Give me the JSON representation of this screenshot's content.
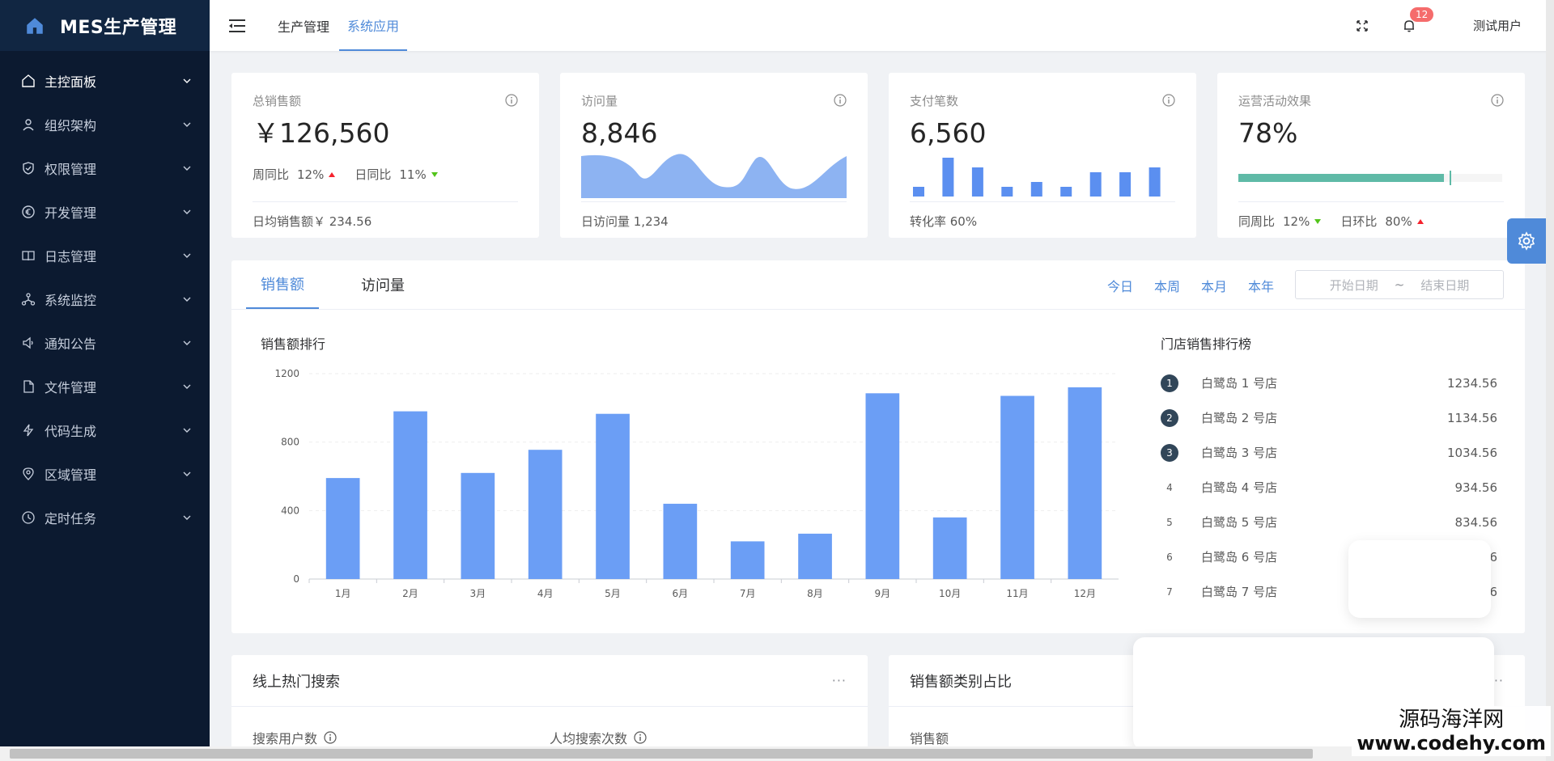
{
  "app": {
    "title": "MES生产管理"
  },
  "sidebar": {
    "items": [
      {
        "label": "主控面板",
        "icon": "home-outline-icon"
      },
      {
        "label": "组织架构",
        "icon": "org-icon"
      },
      {
        "label": "权限管理",
        "icon": "shield-icon"
      },
      {
        "label": "开发管理",
        "icon": "euro-circle-icon"
      },
      {
        "label": "日志管理",
        "icon": "book-icon"
      },
      {
        "label": "系统监控",
        "icon": "monitor-node-icon"
      },
      {
        "label": "通知公告",
        "icon": "speaker-icon"
      },
      {
        "label": "文件管理",
        "icon": "file-icon"
      },
      {
        "label": "代码生成",
        "icon": "lightning-icon"
      },
      {
        "label": "区域管理",
        "icon": "location-icon"
      },
      {
        "label": "定时任务",
        "icon": "clock-icon"
      }
    ]
  },
  "header": {
    "tabs": [
      "生产管理",
      "系统应用"
    ],
    "active_tab": 1,
    "notification_count": "12",
    "user": "测试用户"
  },
  "stats": {
    "sales": {
      "title": "总销售额",
      "value": "￥126,560",
      "week_label": "周同比",
      "week_value": "12%",
      "day_label": "日同比",
      "day_value": "11%",
      "footer": "日均销售额￥ 234.56"
    },
    "visits": {
      "title": "访问量",
      "value": "8,846",
      "footer": "日访问量 1,234"
    },
    "payments": {
      "title": "支付笔数",
      "value": "6,560",
      "footer": "转化率 60%",
      "bars": [
        2,
        8,
        6,
        2,
        3,
        2,
        5,
        5,
        6
      ],
      "bar_color": "#5b8ff0"
    },
    "campaign": {
      "title": "运营活动效果",
      "value": "78%",
      "progress": 0.78,
      "progress_color": "#5fbaa7",
      "week_label": "同周比",
      "week_value": "12%",
      "day_label": "日环比",
      "day_value": "80%"
    }
  },
  "main": {
    "tabs": [
      "销售额",
      "访问量"
    ],
    "periods": [
      "今日",
      "本周",
      "本月",
      "本年"
    ],
    "range_start_placeholder": "开始日期",
    "range_sep": "~",
    "range_end_placeholder": "结束日期",
    "chart_title": "销售额排行",
    "ranking_title": "门店销售排行榜",
    "ranking": [
      {
        "no": "1",
        "name": "白鹭岛 1 号店",
        "value": "1234.56"
      },
      {
        "no": "2",
        "name": "白鹭岛 2 号店",
        "value": "1134.56"
      },
      {
        "no": "3",
        "name": "白鹭岛 3 号店",
        "value": "1034.56"
      },
      {
        "no": "4",
        "name": "白鹭岛 4 号店",
        "value": "934.56"
      },
      {
        "no": "5",
        "name": "白鹭岛 5 号店",
        "value": "834.56"
      },
      {
        "no": "6",
        "name": "白鹭岛 6 号店",
        "value": "6"
      },
      {
        "no": "7",
        "name": "白鹭岛 7 号店",
        "value": "6"
      }
    ]
  },
  "chart_data": {
    "type": "bar",
    "categories": [
      "1月",
      "2月",
      "3月",
      "4月",
      "5月",
      "6月",
      "7月",
      "8月",
      "9月",
      "10月",
      "11月",
      "12月"
    ],
    "values": [
      590,
      980,
      620,
      755,
      965,
      440,
      220,
      265,
      1085,
      360,
      1070,
      1120
    ],
    "ylim": [
      0,
      1200
    ],
    "yticks": [
      0,
      400,
      800,
      1200
    ],
    "grid": true,
    "bar_color": "#6b9ef5"
  },
  "bottom": {
    "left_title": "线上热门搜索",
    "left_more": "···",
    "search_users": "搜索用户数",
    "avg_searches": "人均搜索次数",
    "right_title": "销售额类别占比",
    "right_more": "··",
    "right_sub": "销售额"
  },
  "watermark": {
    "line1": "源码海洋网",
    "line2": "www.codehy.com"
  }
}
